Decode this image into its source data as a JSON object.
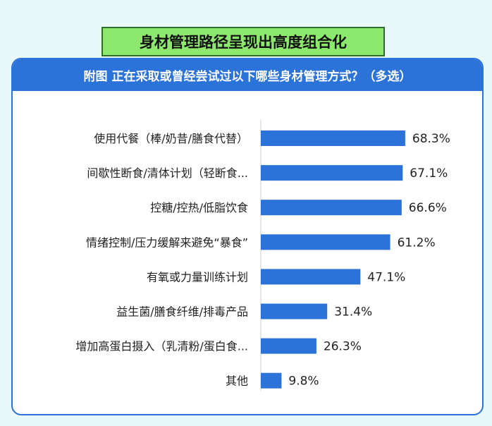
{
  "page": {
    "title": "身材管理路径呈现出高度组合化"
  },
  "colors": {
    "bar": "#2b72d9",
    "title_bg": "#8de86e",
    "header_bg": "#2b72d9",
    "background": "#e9f8f9"
  },
  "chart_data": {
    "type": "bar",
    "orientation": "horizontal",
    "title": "附图 正在采取或曾经尝试过以下哪些身材管理方式？（多选）",
    "categories": [
      "使用代餐（棒/奶昔/膳食代替）",
      "间歇性断食/清体计划（轻断食...",
      "控糖/控热/低脂饮食",
      "情绪控制/压力缓解来避免“暴食”",
      "有氧或力量训练计划",
      "益生菌/膳食纤维/排毒产品",
      "增加高蛋白摄入（乳清粉/蛋白食...",
      "其他"
    ],
    "values": [
      68.3,
      67.1,
      66.6,
      61.2,
      47.1,
      31.4,
      26.3,
      9.8
    ],
    "value_labels": [
      "68.3%",
      "67.1%",
      "66.6%",
      "61.2%",
      "47.1%",
      "31.4%",
      "26.3%",
      "9.8%"
    ],
    "unit": "%",
    "xlim": [
      0,
      100
    ],
    "grid": false,
    "legend": "none"
  }
}
